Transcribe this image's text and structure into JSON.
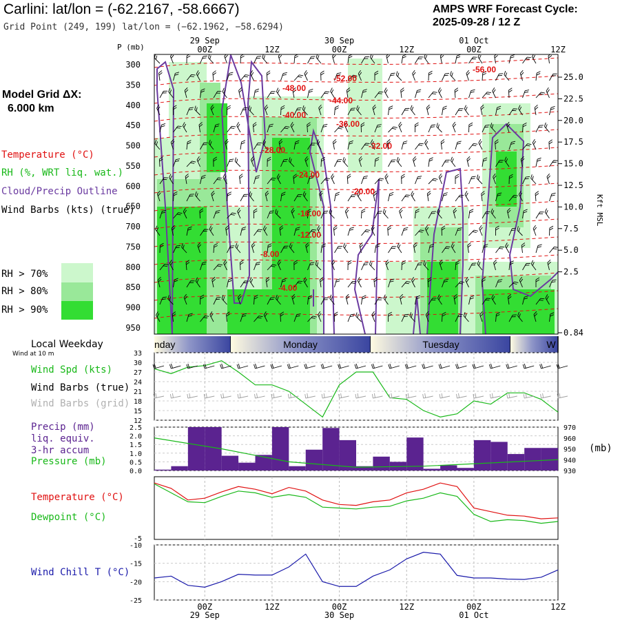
{
  "header": {
    "title": "Carlini:  lat/lon = (-62.2167, -58.6667)",
    "grid_point": "Grid Point (249, 199) lat/lon = (−62.1962, −58.6294)",
    "cycle_line1": "AMPS WRF Forecast Cycle:",
    "cycle_line2": "2025-09-28 / 12  Z",
    "model_grid_line1": "Model Grid ΔX:",
    "model_grid_line2": "6.000 km"
  },
  "time_axis": {
    "hour_labels": [
      "00Z",
      "12Z",
      "00Z",
      "12Z",
      "00Z",
      "12Z"
    ],
    "date_labels": [
      "29 Sep",
      "30 Sep",
      "01 Oct"
    ]
  },
  "colors": {
    "temperature": "#e01010",
    "rh": "#18b818",
    "cloud": "#6a3aa0",
    "wind": "#000000",
    "grid_wind": "#a0a0a0",
    "rh70": "#ccf7cc",
    "rh80": "#99e899",
    "rh90": "#33dd33",
    "precip": "#5b2390",
    "pressure": "#18b818",
    "dewpoint": "#18b818",
    "windchill": "#1a1aaa"
  },
  "sections": {
    "profile": {
      "axis_label": "P (mb)",
      "legend": {
        "temperature": "Temperature (°C)",
        "rh": "RH (%, WRT liq. wat.)",
        "cloud": "Cloud/Precip Outline",
        "wind": "Wind Barbs (kts) (true)"
      },
      "rh_key": [
        "RH > 70%",
        "RH > 80%",
        "RH > 90%"
      ],
      "right_axis_label": "Kft MSL",
      "pressure_ticks": [
        "300",
        "350",
        "400",
        "450",
        "500",
        "550",
        "600",
        "650",
        "700",
        "750",
        "800",
        "850",
        "900",
        "950"
      ],
      "height_ticks": [
        "25.0",
        "22.5",
        "20.0",
        "17.5",
        "15.0",
        "12.5",
        "10.0",
        "7.5",
        "5.0",
        "2.5",
        "0.84"
      ],
      "temperature_labels": [
        "-56.00",
        "-52.00",
        "-48.00",
        "-44.00",
        "-40.00",
        "-36.00",
        "-32.00",
        "-28.00",
        "-24.00",
        "-20.00",
        "-16.00",
        "-12.00",
        "-8.00",
        "-4.00"
      ]
    },
    "weekday": {
      "label": "Local Weekday",
      "wind_note": "Wind at 10 m",
      "days": [
        "nday",
        "Monday",
        "Tuesday",
        "W"
      ]
    },
    "wind_panel": {
      "labels": [
        "Wind Spd (kts)",
        "Wind Barbs (true)",
        "Wind Barbs (grid)"
      ],
      "y_ticks": [
        "33",
        "30",
        "27",
        "24",
        "21",
        "18",
        "15",
        "12"
      ]
    },
    "precip_panel": {
      "labels": [
        "Precip (mm)",
        "liq. equiv.",
        "3-hr accum",
        "Pressure (mb)"
      ],
      "y_ticks_left": [
        "2.5",
        "2.0",
        "1.5",
        "1.0",
        "0.5",
        "0.0"
      ],
      "y_ticks_right": [
        "970",
        "960",
        "950",
        "940",
        "930"
      ],
      "right_unit": "(mb)"
    },
    "temp_panel": {
      "labels": [
        "Temperature (°C)",
        "Dewpoint (°C)"
      ],
      "y_ticks": [
        "-5"
      ]
    },
    "chill_panel": {
      "labels": [
        "Wind Chill T (°C)"
      ],
      "y_ticks": [
        "-10",
        "-15",
        "-20",
        "-25"
      ]
    }
  },
  "chart_data": [
    {
      "type": "line",
      "title": "Wind Speed (kts)",
      "x": [
        "28 Sep 12Z",
        "28 Sep 15Z",
        "28 Sep 18Z",
        "28 Sep 21Z",
        "29 Sep 00Z",
        "29 Sep 03Z",
        "29 Sep 06Z",
        "29 Sep 09Z",
        "29 Sep 12Z",
        "29 Sep 15Z",
        "29 Sep 18Z",
        "29 Sep 21Z",
        "30 Sep 00Z",
        "30 Sep 03Z",
        "30 Sep 06Z",
        "30 Sep 09Z",
        "30 Sep 12Z",
        "30 Sep 15Z",
        "30 Sep 18Z",
        "30 Sep 21Z",
        "01 Oct 00Z",
        "01 Oct 03Z",
        "01 Oct 06Z",
        "01 Oct 09Z",
        "01 Oct 12Z"
      ],
      "series": [
        {
          "values": [
            28,
            26.5,
            28.5,
            29,
            30.5,
            27,
            23,
            23,
            21,
            17,
            13,
            23,
            27,
            27,
            19,
            18.5,
            15,
            13,
            14,
            18,
            17,
            20.5,
            20.5,
            18.5,
            14.5
          ]
        }
      ],
      "ylim": [
        12,
        33
      ]
    },
    {
      "type": "bar",
      "title": "Precip (mm) 3-hr accum",
      "x": [
        "28 Sep 12Z",
        "28 Sep 15Z",
        "28 Sep 18Z",
        "28 Sep 21Z",
        "29 Sep 00Z",
        "29 Sep 03Z",
        "29 Sep 06Z",
        "29 Sep 09Z",
        "29 Sep 12Z",
        "29 Sep 15Z",
        "29 Sep 18Z",
        "29 Sep 21Z",
        "30 Sep 00Z",
        "30 Sep 03Z",
        "30 Sep 06Z",
        "30 Sep 09Z",
        "30 Sep 12Z",
        "30 Sep 15Z",
        "30 Sep 18Z",
        "30 Sep 21Z",
        "01 Oct 00Z",
        "01 Oct 03Z",
        "01 Oct 06Z",
        "01 Oct 09Z"
      ],
      "values": [
        0.05,
        0.25,
        2.5,
        2.5,
        0.85,
        0.45,
        0.9,
        2.5,
        0.25,
        1.2,
        2.45,
        1.75,
        0.25,
        0.8,
        0.5,
        1.9,
        0.1,
        0.3,
        0.15,
        1.75,
        1.65,
        0.95,
        1.3,
        1.3
      ],
      "ylim": [
        0,
        2.5
      ]
    },
    {
      "type": "line",
      "title": "Pressure (mb)",
      "x": [
        "28 Sep 12Z",
        "29 Sep 00Z",
        "29 Sep 12Z",
        "30 Sep 00Z",
        "30 Sep 12Z",
        "01 Oct 00Z",
        "01 Oct 12Z"
      ],
      "series": [
        {
          "values": [
            960,
            950,
            938,
            933,
            934,
            937,
            940
          ]
        }
      ],
      "ylim": [
        930,
        970
      ]
    },
    {
      "type": "line",
      "title": "Temperature and Dewpoint (°C)",
      "x": [
        "28 Sep 12Z",
        "28 Sep 15Z",
        "28 Sep 18Z",
        "28 Sep 21Z",
        "29 Sep 00Z",
        "29 Sep 03Z",
        "29 Sep 06Z",
        "29 Sep 09Z",
        "29 Sep 12Z",
        "29 Sep 15Z",
        "29 Sep 18Z",
        "29 Sep 21Z",
        "30 Sep 00Z",
        "30 Sep 03Z",
        "30 Sep 06Z",
        "30 Sep 09Z",
        "30 Sep 12Z",
        "30 Sep 15Z",
        "30 Sep 18Z",
        "30 Sep 21Z",
        "01 Oct 00Z",
        "01 Oct 03Z",
        "01 Oct 06Z",
        "01 Oct 09Z",
        "01 Oct 12Z"
      ],
      "series": [
        {
          "values": [
            1.3,
            0.7,
            -0.6,
            -0.4,
            0.3,
            0.9,
            0.6,
            0.1,
            0.8,
            0.4,
            -0.6,
            -1.1,
            -1.2,
            -0.8,
            -0.6,
            0.2,
            0.6,
            1.3,
            0.9,
            -1.5,
            -1.9,
            -2.3,
            -2.4,
            -2.7,
            -2.6
          ]
        },
        {
          "values": [
            1.2,
            0.2,
            -0.8,
            -0.9,
            -0.2,
            0.4,
            0.2,
            -0.3,
            0.0,
            -0.3,
            -1.4,
            -1.5,
            -1.6,
            -1.4,
            -1.3,
            -0.7,
            -0.4,
            0.2,
            -0.2,
            -2.2,
            -3.0,
            -2.8,
            -2.9,
            -3.2,
            -3.0
          ]
        }
      ]
    },
    {
      "type": "line",
      "title": "Wind Chill T (°C)",
      "x": [
        "28 Sep 12Z",
        "28 Sep 15Z",
        "28 Sep 18Z",
        "28 Sep 21Z",
        "29 Sep 00Z",
        "29 Sep 03Z",
        "29 Sep 06Z",
        "29 Sep 09Z",
        "29 Sep 12Z",
        "29 Sep 15Z",
        "29 Sep 18Z",
        "29 Sep 21Z",
        "30 Sep 00Z",
        "30 Sep 03Z",
        "30 Sep 06Z",
        "30 Sep 09Z",
        "30 Sep 12Z",
        "30 Sep 15Z",
        "30 Sep 18Z",
        "30 Sep 21Z",
        "01 Oct 00Z",
        "01 Oct 03Z",
        "01 Oct 06Z",
        "01 Oct 09Z",
        "01 Oct 12Z"
      ],
      "series": [
        {
          "values": [
            -19,
            -18.5,
            -21,
            -21.5,
            -20,
            -18,
            -18.2,
            -18.2,
            -16,
            -12.5,
            -20,
            -21.3,
            -21.3,
            -18.5,
            -16.8,
            -13.8,
            -12,
            -12.5,
            -18.3,
            -19,
            -19,
            -19.3,
            -19.4,
            -18.8,
            -16.8
          ]
        }
      ],
      "ylim": [
        -25,
        -10
      ]
    }
  ]
}
